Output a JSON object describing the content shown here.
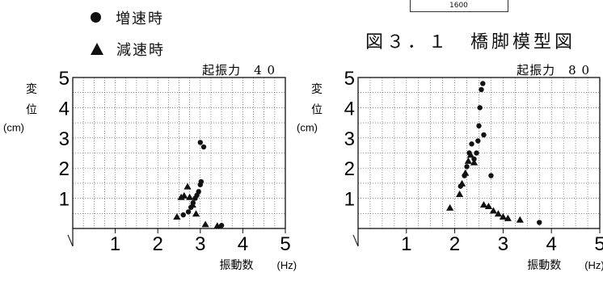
{
  "legend": {
    "accel": {
      "label": "増速時",
      "icon": "filled-circle"
    },
    "decel": {
      "label": "減速時",
      "icon": "filled-triangle"
    }
  },
  "figure_caption": "図３．１　橋脚模型図",
  "scale_label": "1600",
  "chart_data": [
    {
      "type": "scatter",
      "title": "起振力　4 0",
      "xlabel": "振動数",
      "xunit": "(Hz)",
      "ylabel": [
        "変",
        "位"
      ],
      "yunit": "(cm)",
      "xlim": [
        0,
        5
      ],
      "ylim": [
        0,
        5
      ],
      "xticks": [
        1,
        2,
        3,
        4,
        5
      ],
      "yticks": [
        1,
        2,
        3,
        4,
        5
      ],
      "grid": true,
      "series": [
        {
          "name": "増速時",
          "marker": "circle",
          "points": [
            [
              2.6,
              0.45
            ],
            [
              2.72,
              0.55
            ],
            [
              2.78,
              0.7
            ],
            [
              2.83,
              0.85
            ],
            [
              2.88,
              1.0
            ],
            [
              2.92,
              1.1
            ],
            [
              2.96,
              1.22
            ],
            [
              3.0,
              1.45
            ],
            [
              3.02,
              1.55
            ],
            [
              3.0,
              2.85
            ],
            [
              3.08,
              2.7
            ],
            [
              3.5,
              0.1
            ]
          ]
        },
        {
          "name": "減速時",
          "marker": "triangle",
          "points": [
            [
              2.45,
              0.4
            ],
            [
              2.55,
              1.05
            ],
            [
              2.62,
              1.1
            ],
            [
              2.7,
              1.4
            ],
            [
              2.75,
              1.05
            ],
            [
              2.82,
              0.8
            ],
            [
              2.9,
              0.5
            ],
            [
              3.12,
              0.15
            ],
            [
              3.4,
              0.1
            ]
          ]
        }
      ]
    },
    {
      "type": "scatter",
      "title": "起振力　8 0",
      "xlabel": "振動数",
      "xunit": "(Hz)",
      "ylabel": [
        "変",
        "位"
      ],
      "yunit": "(cm)",
      "xlim": [
        0,
        5
      ],
      "ylim": [
        0,
        5
      ],
      "xticks": [
        1,
        2,
        3,
        4,
        5
      ],
      "yticks": [
        1,
        2,
        3,
        4,
        5
      ],
      "grid": true,
      "series": [
        {
          "name": "増速時",
          "marker": "circle",
          "points": [
            [
              2.12,
              1.4
            ],
            [
              2.2,
              1.75
            ],
            [
              2.25,
              2.05
            ],
            [
              2.3,
              2.5
            ],
            [
              2.35,
              2.8
            ],
            [
              2.4,
              2.3
            ],
            [
              2.45,
              2.5
            ],
            [
              2.48,
              2.9
            ],
            [
              2.5,
              3.4
            ],
            [
              2.52,
              4.0
            ],
            [
              2.55,
              4.6
            ],
            [
              2.58,
              4.8
            ],
            [
              2.6,
              3.1
            ],
            [
              2.75,
              1.75
            ],
            [
              3.75,
              0.2
            ]
          ]
        },
        {
          "name": "減速時",
          "marker": "triangle",
          "points": [
            [
              1.9,
              0.7
            ],
            [
              2.1,
              1.15
            ],
            [
              2.15,
              1.5
            ],
            [
              2.22,
              1.85
            ],
            [
              2.28,
              2.25
            ],
            [
              2.33,
              2.45
            ],
            [
              2.4,
              2.2
            ],
            [
              2.6,
              0.8
            ],
            [
              2.7,
              0.75
            ],
            [
              2.8,
              0.6
            ],
            [
              2.9,
              0.5
            ],
            [
              3.0,
              0.4
            ],
            [
              3.1,
              0.35
            ],
            [
              3.35,
              0.3
            ]
          ]
        }
      ]
    }
  ]
}
